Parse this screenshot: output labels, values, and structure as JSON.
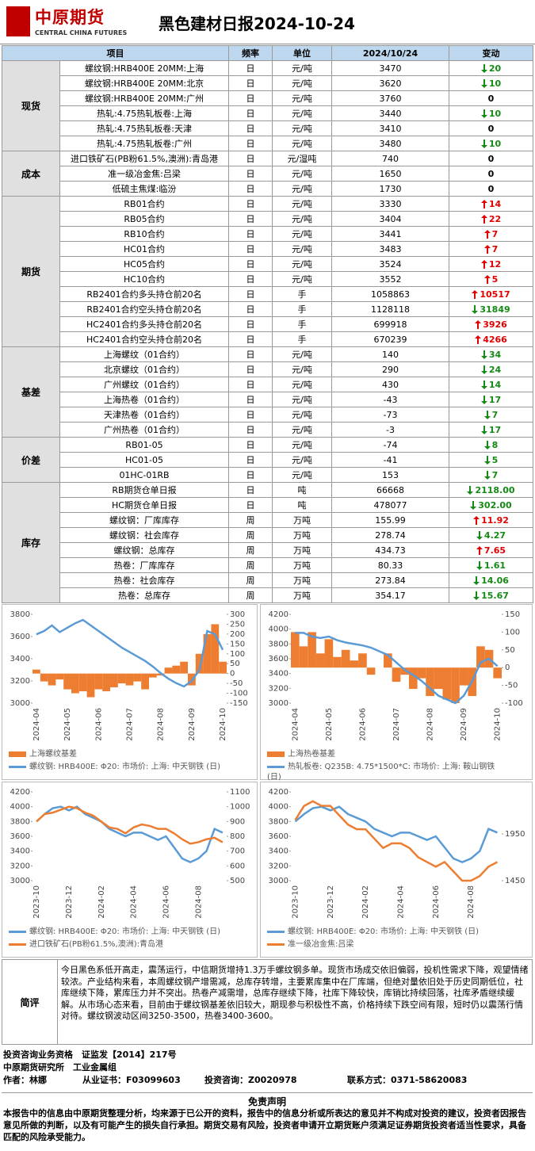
{
  "header": {
    "logo": "中原期货",
    "logo_en": "CENTRAL CHINA FUTURES",
    "title": "黑色建材日报2024-10-24"
  },
  "table": {
    "columns": [
      "项目",
      "频率",
      "单位",
      "2024/10/24",
      "变动"
    ],
    "groups": [
      {
        "name": "现货",
        "rows": [
          {
            "cells": [
              "螺纹钢:HRB400E 20MM:上海",
              "日",
              "元/吨",
              "3470",
              "20"
            ],
            "dir": "down"
          },
          {
            "cells": [
              "螺纹钢:HRB400E 20MM:北京",
              "日",
              "元/吨",
              "3620",
              "10"
            ],
            "dir": "down"
          },
          {
            "cells": [
              "螺纹钢:HRB400E 20MM:广州",
              "日",
              "元/吨",
              "3760",
              "0"
            ]
          },
          {
            "cells": [
              "热轧:4.75热轧板卷:上海",
              "日",
              "元/吨",
              "3440",
              "10"
            ],
            "dir": "down"
          },
          {
            "cells": [
              "热轧:4.75热轧板卷:天津",
              "日",
              "元/吨",
              "3410",
              "0"
            ]
          },
          {
            "cells": [
              "热轧:4.75热轧板卷:广州",
              "日",
              "元/吨",
              "3480",
              "10"
            ],
            "dir": "down"
          }
        ]
      },
      {
        "name": "成本",
        "rows": [
          {
            "cells": [
              "进口铁矿石(PB粉61.5%,澳洲):青岛港",
              "日",
              "元/湿吨",
              "740",
              "0"
            ]
          },
          {
            "cells": [
              "准一级冶金焦:吕梁",
              "日",
              "元/吨",
              "1650",
              "0"
            ]
          },
          {
            "cells": [
              "低硫主焦煤:临汾",
              "日",
              "元/吨",
              "1730",
              "0"
            ]
          }
        ]
      },
      {
        "name": "期货",
        "rows": [
          {
            "cells": [
              "RB01合约",
              "日",
              "元/吨",
              "3330",
              "14"
            ],
            "dir": "up"
          },
          {
            "cells": [
              "RB05合约",
              "日",
              "元/吨",
              "3404",
              "22"
            ],
            "dir": "up"
          },
          {
            "cells": [
              "RB10合约",
              "日",
              "元/吨",
              "3441",
              "7"
            ],
            "dir": "up"
          },
          {
            "cells": [
              "HC01合约",
              "日",
              "元/吨",
              "3483",
              "7"
            ],
            "dir": "up"
          },
          {
            "cells": [
              "HC05合约",
              "日",
              "元/吨",
              "3524",
              "12"
            ],
            "dir": "up"
          },
          {
            "cells": [
              "HC10合约",
              "日",
              "元/吨",
              "3552",
              "5"
            ],
            "dir": "up"
          },
          {
            "cells": [
              "RB2401合约多头持仓前20名",
              "日",
              "手",
              "1058863",
              "10517"
            ],
            "dir": "up"
          },
          {
            "cells": [
              "RB2401合约空头持仓前20名",
              "日",
              "手",
              "1128118",
              "31849"
            ],
            "dir": "down"
          },
          {
            "cells": [
              "HC2401合约多头持仓前20名",
              "日",
              "手",
              "699918",
              "3926"
            ],
            "dir": "up"
          },
          {
            "cells": [
              "HC2401合约空头持仓前20名",
              "日",
              "手",
              "670239",
              "4266"
            ],
            "dir": "up"
          }
        ]
      },
      {
        "name": "基差",
        "rows": [
          {
            "cells": [
              "上海螺纹（01合约）",
              "日",
              "元/吨",
              "140",
              "34"
            ],
            "dir": "down"
          },
          {
            "cells": [
              "北京螺纹（01合约）",
              "日",
              "元/吨",
              "290",
              "24"
            ],
            "dir": "down"
          },
          {
            "cells": [
              "广州螺纹（01合约）",
              "日",
              "元/吨",
              "430",
              "14"
            ],
            "dir": "down"
          },
          {
            "cells": [
              "上海热卷（01合约）",
              "日",
              "元/吨",
              "-43",
              "17"
            ],
            "dir": "down"
          },
          {
            "cells": [
              "天津热卷（01合约）",
              "日",
              "元/吨",
              "-73",
              "7"
            ],
            "dir": "down"
          },
          {
            "cells": [
              "广州热卷（01合约）",
              "日",
              "元/吨",
              "-3",
              "17"
            ],
            "dir": "down"
          }
        ]
      },
      {
        "name": "价差",
        "rows": [
          {
            "cells": [
              "RB01-05",
              "日",
              "元/吨",
              "-74",
              "8"
            ],
            "dir": "down"
          },
          {
            "cells": [
              "HC01-05",
              "日",
              "元/吨",
              "-41",
              "5"
            ],
            "dir": "down"
          },
          {
            "cells": [
              "01HC-01RB",
              "日",
              "元/吨",
              "153",
              "7"
            ],
            "dir": "down"
          }
        ]
      },
      {
        "name": "库存",
        "rows": [
          {
            "cells": [
              "RB期货仓单日报",
              "日",
              "吨",
              "66668",
              "2118.00"
            ],
            "dir": "down"
          },
          {
            "cells": [
              "HC期货仓单日报",
              "日",
              "吨",
              "478077",
              "302.00"
            ],
            "dir": "down"
          },
          {
            "cells": [
              "螺纹钢：厂库库存",
              "周",
              "万吨",
              "155.99",
              "11.92"
            ],
            "dir": "up"
          },
          {
            "cells": [
              "螺纹钢：社会库存",
              "周",
              "万吨",
              "278.74",
              "4.27"
            ],
            "dir": "down"
          },
          {
            "cells": [
              "螺纹钢：总库存",
              "周",
              "万吨",
              "434.73",
              "7.65"
            ],
            "dir": "up"
          },
          {
            "cells": [
              "热卷：厂库库存",
              "周",
              "万吨",
              "80.33",
              "1.61"
            ],
            "dir": "down"
          },
          {
            "cells": [
              "热卷：社会库存",
              "周",
              "万吨",
              "273.84",
              "14.06"
            ],
            "dir": "down"
          },
          {
            "cells": [
              "热卷：总库存",
              "周",
              "万吨",
              "354.17",
              "15.67"
            ],
            "dir": "down"
          }
        ]
      }
    ]
  },
  "chart_data": [
    {
      "type": "line",
      "categories": [
        "2024-04",
        null,
        null,
        null,
        "2024-05",
        null,
        null,
        null,
        "2024-06",
        null,
        null,
        null,
        "2024-07",
        null,
        null,
        null,
        "2024-08",
        null,
        null,
        null,
        "2024-09",
        null,
        null,
        null,
        "2024-10"
      ],
      "ylim": [
        3000,
        3800
      ],
      "yticks": [
        3000,
        3200,
        3400,
        3600,
        3800
      ],
      "y2lim": [
        -150,
        300
      ],
      "y2ticks": [
        -150,
        -100,
        -50,
        0,
        50,
        100,
        150,
        200,
        250,
        300
      ],
      "series": [
        {
          "name": "上海螺纹基差",
          "type": "bar",
          "axis": "y2",
          "color": "#ed7d31",
          "values": [
            20,
            -40,
            -60,
            -30,
            -80,
            -100,
            -90,
            -120,
            -80,
            -90,
            -70,
            -50,
            -60,
            -40,
            -80,
            -20,
            -10,
            30,
            40,
            60,
            -60,
            100,
            200,
            250,
            60
          ]
        },
        {
          "name": "螺纹钢: HRB400E: Φ20: 市场价: 上海: 中天钢铁 (日)",
          "type": "line",
          "color": "#5b9bd5",
          "values": [
            3620,
            3650,
            3700,
            3640,
            3680,
            3720,
            3750,
            3700,
            3650,
            3600,
            3550,
            3500,
            3460,
            3420,
            3380,
            3330,
            3270,
            3220,
            3180,
            3150,
            3200,
            3300,
            3650,
            3620,
            3480
          ]
        }
      ]
    },
    {
      "type": "line",
      "categories": [
        "2024-04",
        null,
        null,
        null,
        "2024-05",
        null,
        null,
        null,
        "2024-06",
        null,
        null,
        null,
        "2024-07",
        null,
        null,
        null,
        "2024-08",
        null,
        null,
        null,
        "2024-09",
        null,
        null,
        null,
        "2024-10"
      ],
      "ylim": [
        3000,
        4200
      ],
      "yticks": [
        3000,
        3200,
        3400,
        3600,
        3800,
        4000,
        4200
      ],
      "y2lim": [
        -100,
        150
      ],
      "y2ticks": [
        -100,
        -50,
        0,
        50,
        100,
        150
      ],
      "series": [
        {
          "name": "上海热卷基差",
          "type": "bar",
          "axis": "y2",
          "color": "#ed7d31",
          "values": [
            100,
            60,
            100,
            40,
            80,
            30,
            50,
            20,
            40,
            -20,
            0,
            40,
            -40,
            -20,
            -60,
            -30,
            -80,
            -60,
            -90,
            -100,
            -50,
            -80,
            60,
            50,
            -30
          ]
        },
        {
          "name": "热轧板卷: Q235B: 4.75*1500*C: 市场价: 上海: 鞍山钢铁 (日)",
          "type": "line",
          "color": "#5b9bd5",
          "values": [
            3950,
            3950,
            3900,
            3880,
            3900,
            3850,
            3820,
            3800,
            3780,
            3750,
            3700,
            3650,
            3550,
            3450,
            3380,
            3300,
            3200,
            3100,
            3050,
            3000,
            3100,
            3300,
            3550,
            3600,
            3500
          ]
        }
      ]
    },
    {
      "type": "line",
      "categories": [
        "2023-10",
        null,
        null,
        null,
        "2023-12",
        null,
        null,
        null,
        "2024-02",
        null,
        null,
        null,
        "2024-04",
        null,
        null,
        null,
        "2024-06",
        null,
        null,
        null,
        "2024-08",
        null,
        null,
        null
      ],
      "ylim": [
        3000,
        4200
      ],
      "yticks": [
        3000,
        3200,
        3400,
        3600,
        3800,
        4000,
        4200
      ],
      "y2lim": [
        500,
        1100
      ],
      "y2ticks": [
        500,
        600,
        700,
        800,
        900,
        1000,
        1100
      ],
      "series": [
        {
          "name": "螺纹钢: HRB400E: Φ20: 市场价: 上海: 中天钢铁 (日)",
          "type": "line",
          "color": "#5b9bd5",
          "values": [
            3800,
            3900,
            3980,
            4000,
            3950,
            4000,
            3900,
            3850,
            3800,
            3700,
            3650,
            3600,
            3650,
            3650,
            3600,
            3550,
            3600,
            3450,
            3300,
            3250,
            3300,
            3400,
            3700,
            3650
          ]
        },
        {
          "name": "进口铁矿石(PB粉61.5%,澳洲):青岛港",
          "type": "line",
          "axis": "y2",
          "color": "#ed7d31",
          "values": [
            900,
            950,
            960,
            980,
            1000,
            990,
            960,
            940,
            900,
            860,
            850,
            820,
            860,
            880,
            870,
            850,
            850,
            820,
            780,
            750,
            760,
            780,
            790,
            760
          ]
        }
      ]
    },
    {
      "type": "line",
      "categories": [
        "2023-10",
        null,
        null,
        null,
        "2023-12",
        null,
        null,
        null,
        "2024-02",
        null,
        null,
        null,
        "2024-04",
        null,
        null,
        null,
        "2024-06",
        null,
        null,
        null,
        "2024-08",
        null,
        null,
        null
      ],
      "ylim": [
        3000,
        4200
      ],
      "yticks": [
        3000,
        3200,
        3400,
        3600,
        3800,
        4000,
        4200
      ],
      "y2lim": [
        1450,
        2400
      ],
      "y2ticks": [
        1450,
        1950
      ],
      "series": [
        {
          "name": "螺纹钢: HRB400E: Φ20: 市场价: 上海: 中天钢铁 (日)",
          "type": "line",
          "color": "#5b9bd5",
          "values": [
            3800,
            3900,
            3980,
            4000,
            3950,
            4000,
            3900,
            3850,
            3800,
            3700,
            3650,
            3600,
            3650,
            3650,
            3600,
            3550,
            3600,
            3450,
            3300,
            3250,
            3300,
            3400,
            3700,
            3650
          ]
        },
        {
          "name": "准一级冶金焦:吕梁",
          "type": "line",
          "axis": "y2",
          "color": "#ed7d31",
          "values": [
            2100,
            2250,
            2300,
            2250,
            2250,
            2150,
            2050,
            2000,
            2000,
            1900,
            1800,
            1850,
            1850,
            1800,
            1700,
            1650,
            1600,
            1650,
            1550,
            1450,
            1450,
            1500,
            1600,
            1650
          ]
        }
      ]
    }
  ],
  "comment": {
    "label": "简评",
    "text": "今日黑色系低开高走，震荡运行，中信期货增持1.3万手螺纹钢多单。现货市场成交依旧偏弱，投机性需求下降，观望情绪较浓。产业结构来看，本周螺纹钢产增需减，总库存转增，主要累库集中在厂库端，但绝对量依旧处于历史同期低位，社库继续下降，累库压力并不突出。热卷产减需增，总库存继续下降，社库下降较快，库销比持续回落，社库矛盾继续缓解。从市场心态来看，目前由于螺纹钢基差依旧较大，期现参与积极性不高，价格持续下跌空间有限，短时仍以震荡行情对待。螺纹钢波动区间3250-3500，热卷3400-3600。"
  },
  "footer": {
    "qualification": "投资咨询业务资格　证监发【2014】217号",
    "dept": "中原期货研究所　工业金属组",
    "author": "作者：林娜",
    "cert": "从业证书：F03099603",
    "advisor": "投资咨询：Z0020978",
    "contact": "联系方式：0371-58620083"
  },
  "disclaimer": {
    "title": "免责声明",
    "text": "本报告中的信息由中原期货整理分析，均来源于已公开的资料，报告中的信息分析或所表达的意见并不构成对投资的建议，投资者因报告意见所做的判断，以及有可能产生的损失自行承担。期货交易有风险，投资者申请开立期货账户须满足证券期货投资者适当性要求，具备匹配的风险承受能力。"
  }
}
